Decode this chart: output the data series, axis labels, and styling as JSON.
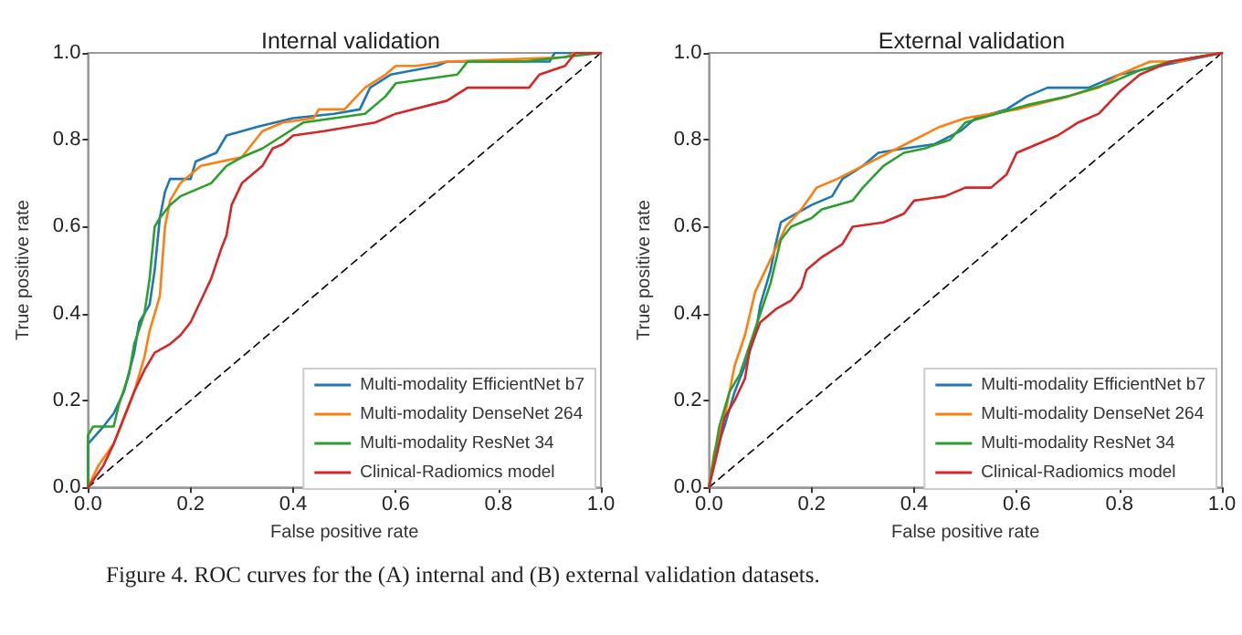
{
  "chart_data": [
    {
      "type": "line",
      "title": "Internal validation",
      "xlabel": "False positive rate",
      "ylabel": "True positive rate",
      "xlim": [
        0,
        1
      ],
      "ylim": [
        0,
        1
      ],
      "xticks": [
        {
          "value": 0,
          "label": "0.0"
        },
        {
          "value": 0.2,
          "label": "0.2"
        },
        {
          "value": 0.4,
          "label": "0.4"
        },
        {
          "value": 0.6,
          "label": "0.6"
        },
        {
          "value": 0.8,
          "label": "0.8"
        },
        {
          "value": 1,
          "label": "1.0"
        }
      ],
      "yticks": [
        {
          "value": 0,
          "label": "0.0"
        },
        {
          "value": 0.2,
          "label": "0.2"
        },
        {
          "value": 0.4,
          "label": "0.4"
        },
        {
          "value": 0.6,
          "label": "0.6"
        },
        {
          "value": 0.8,
          "label": "0.8"
        },
        {
          "value": 1,
          "label": "1.0"
        }
      ],
      "grid": false,
      "legend": "bottom right",
      "marker": "none",
      "annotations": [
        "Figure 4. ROC curves for the (A) internal and (B) external validation datasets."
      ],
      "series": [
        {
          "name": "Multi-modality EfficientNet b7",
          "color": "#1f77b4",
          "x": [
            0,
            0,
            0.03,
            0.05,
            0.07,
            0.09,
            0.1,
            0.12,
            0.13,
            0.14,
            0.15,
            0.16,
            0.2,
            0.21,
            0.25,
            0.27,
            0.33,
            0.4,
            0.48,
            0.53,
            0.55,
            0.59,
            0.68,
            0.7,
            0.9,
            0.91,
            1
          ],
          "values": [
            0,
            0.1,
            0.14,
            0.17,
            0.22,
            0.31,
            0.38,
            0.42,
            0.5,
            0.62,
            0.68,
            0.71,
            0.71,
            0.75,
            0.77,
            0.81,
            0.83,
            0.85,
            0.86,
            0.87,
            0.92,
            0.95,
            0.97,
            0.98,
            0.98,
            1,
            1
          ]
        },
        {
          "name": "Multi-modality DenseNet 264",
          "color": "#ff7f0e",
          "x": [
            0,
            0.02,
            0.05,
            0.07,
            0.09,
            0.11,
            0.12,
            0.14,
            0.15,
            0.16,
            0.18,
            0.22,
            0.3,
            0.34,
            0.38,
            0.44,
            0.45,
            0.5,
            0.54,
            0.58,
            0.6,
            0.64,
            0.7,
            0.93,
            0.95,
            1
          ],
          "values": [
            0,
            0.05,
            0.1,
            0.16,
            0.22,
            0.3,
            0.36,
            0.44,
            0.6,
            0.66,
            0.7,
            0.74,
            0.76,
            0.82,
            0.84,
            0.85,
            0.87,
            0.87,
            0.92,
            0.95,
            0.97,
            0.97,
            0.98,
            0.99,
            1,
            1
          ]
        },
        {
          "name": "Multi-modality ResNet 34",
          "color": "#2ca02c",
          "x": [
            0,
            0,
            0.01,
            0.05,
            0.06,
            0.08,
            0.09,
            0.11,
            0.12,
            0.13,
            0.14,
            0.16,
            0.18,
            0.24,
            0.27,
            0.3,
            0.34,
            0.38,
            0.42,
            0.48,
            0.54,
            0.58,
            0.6,
            0.72,
            0.74,
            0.85,
            1
          ],
          "values": [
            0,
            0.12,
            0.14,
            0.14,
            0.19,
            0.26,
            0.33,
            0.4,
            0.48,
            0.6,
            0.62,
            0.65,
            0.67,
            0.7,
            0.74,
            0.76,
            0.78,
            0.81,
            0.84,
            0.85,
            0.86,
            0.9,
            0.93,
            0.95,
            0.98,
            0.98,
            1
          ]
        },
        {
          "name": "Clinical-Radiomics model",
          "color": "#d62728",
          "x": [
            0,
            0.03,
            0.05,
            0.07,
            0.09,
            0.11,
            0.13,
            0.16,
            0.18,
            0.2,
            0.22,
            0.24,
            0.26,
            0.27,
            0.28,
            0.3,
            0.34,
            0.36,
            0.38,
            0.4,
            0.46,
            0.56,
            0.6,
            0.7,
            0.74,
            0.86,
            0.88,
            0.93,
            0.95,
            1
          ],
          "values": [
            0,
            0.05,
            0.1,
            0.16,
            0.22,
            0.27,
            0.31,
            0.33,
            0.35,
            0.38,
            0.43,
            0.48,
            0.55,
            0.58,
            0.65,
            0.7,
            0.74,
            0.78,
            0.79,
            0.81,
            0.82,
            0.84,
            0.86,
            0.89,
            0.92,
            0.92,
            0.95,
            0.97,
            1,
            1
          ]
        },
        {
          "color": "#000000",
          "line_style": "dashed",
          "x": [
            0,
            1
          ],
          "values": [
            0,
            1
          ]
        }
      ]
    },
    {
      "type": "line",
      "title": "External validation",
      "xlabel": "False positive rate",
      "ylabel": "True positive rate",
      "xlim": [
        0,
        1
      ],
      "ylim": [
        0,
        1
      ],
      "xticks": [
        {
          "value": 0,
          "label": "0.0"
        },
        {
          "value": 0.2,
          "label": "0.2"
        },
        {
          "value": 0.4,
          "label": "0.4"
        },
        {
          "value": 0.6,
          "label": "0.6"
        },
        {
          "value": 0.8,
          "label": "0.8"
        },
        {
          "value": 1,
          "label": "1.0"
        }
      ],
      "yticks": [
        {
          "value": 0,
          "label": "0.0"
        },
        {
          "value": 0.2,
          "label": "0.2"
        },
        {
          "value": 0.4,
          "label": "0.4"
        },
        {
          "value": 0.6,
          "label": "0.6"
        },
        {
          "value": 0.8,
          "label": "0.8"
        },
        {
          "value": 1,
          "label": "1.0"
        }
      ],
      "grid": false,
      "legend": "bottom right",
      "marker": "none",
      "series": [
        {
          "name": "Multi-modality EfficientNet b7",
          "color": "#1f77b4",
          "x": [
            0,
            0.01,
            0.03,
            0.05,
            0.07,
            0.09,
            0.1,
            0.12,
            0.13,
            0.14,
            0.17,
            0.2,
            0.24,
            0.26,
            0.3,
            0.33,
            0.38,
            0.44,
            0.49,
            0.52,
            0.58,
            0.62,
            0.66,
            0.74,
            0.8,
            0.88,
            1
          ],
          "values": [
            0,
            0.07,
            0.14,
            0.22,
            0.28,
            0.35,
            0.42,
            0.5,
            0.56,
            0.61,
            0.63,
            0.65,
            0.67,
            0.71,
            0.74,
            0.77,
            0.78,
            0.79,
            0.82,
            0.85,
            0.87,
            0.9,
            0.92,
            0.92,
            0.95,
            0.97,
            1
          ]
        },
        {
          "name": "Multi-modality DenseNet 264",
          "color": "#ff7f0e",
          "x": [
            0,
            0.01,
            0.03,
            0.05,
            0.07,
            0.09,
            0.11,
            0.13,
            0.15,
            0.18,
            0.21,
            0.25,
            0.3,
            0.35,
            0.4,
            0.45,
            0.5,
            0.55,
            0.6,
            0.7,
            0.76,
            0.8,
            0.86,
            0.92,
            0.95,
            1
          ],
          "values": [
            0,
            0.08,
            0.16,
            0.28,
            0.35,
            0.45,
            0.5,
            0.55,
            0.6,
            0.64,
            0.69,
            0.71,
            0.74,
            0.77,
            0.8,
            0.83,
            0.85,
            0.86,
            0.87,
            0.9,
            0.92,
            0.95,
            0.98,
            0.98,
            0.99,
            1
          ]
        },
        {
          "name": "Multi-modality ResNet 34",
          "color": "#2ca02c",
          "x": [
            0,
            0.01,
            0.02,
            0.04,
            0.06,
            0.08,
            0.1,
            0.12,
            0.14,
            0.16,
            0.2,
            0.22,
            0.28,
            0.3,
            0.34,
            0.38,
            0.42,
            0.47,
            0.5,
            0.56,
            0.62,
            0.7,
            0.78,
            0.84,
            0.9,
            1
          ],
          "values": [
            0,
            0.07,
            0.14,
            0.22,
            0.26,
            0.33,
            0.4,
            0.47,
            0.57,
            0.6,
            0.62,
            0.64,
            0.66,
            0.69,
            0.74,
            0.77,
            0.78,
            0.8,
            0.84,
            0.86,
            0.88,
            0.9,
            0.93,
            0.96,
            0.98,
            1
          ]
        },
        {
          "name": "Clinical-Radiomics model",
          "color": "#d62728",
          "x": [
            0,
            0.02,
            0.03,
            0.05,
            0.07,
            0.08,
            0.1,
            0.13,
            0.16,
            0.18,
            0.19,
            0.22,
            0.26,
            0.28,
            0.34,
            0.38,
            0.4,
            0.46,
            0.5,
            0.55,
            0.58,
            0.6,
            0.64,
            0.68,
            0.72,
            0.76,
            0.8,
            0.84,
            0.9,
            0.95,
            1
          ],
          "values": [
            0,
            0.1,
            0.16,
            0.2,
            0.25,
            0.32,
            0.38,
            0.41,
            0.43,
            0.46,
            0.5,
            0.53,
            0.56,
            0.6,
            0.61,
            0.63,
            0.66,
            0.67,
            0.69,
            0.69,
            0.72,
            0.77,
            0.79,
            0.81,
            0.84,
            0.86,
            0.91,
            0.95,
            0.98,
            0.99,
            1
          ]
        },
        {
          "color": "#000000",
          "line_style": "dashed",
          "x": [
            0,
            1
          ],
          "values": [
            0,
            1
          ]
        }
      ]
    }
  ]
}
